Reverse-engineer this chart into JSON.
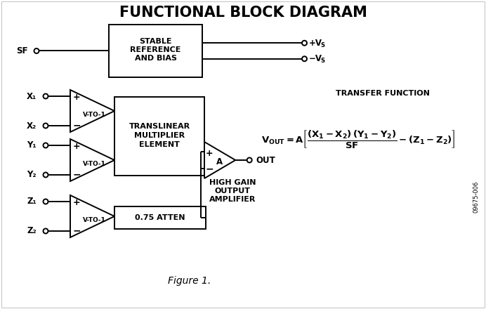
{
  "title": "FUNCTIONAL BLOCK DIAGRAM",
  "bg_color": "#ffffff",
  "line_color": "#000000",
  "title_fontsize": 15,
  "figure_caption": "Figure 1.",
  "sidebar_text": "09675-006",
  "transfer_function_label": "TRANSFER FUNCTION"
}
